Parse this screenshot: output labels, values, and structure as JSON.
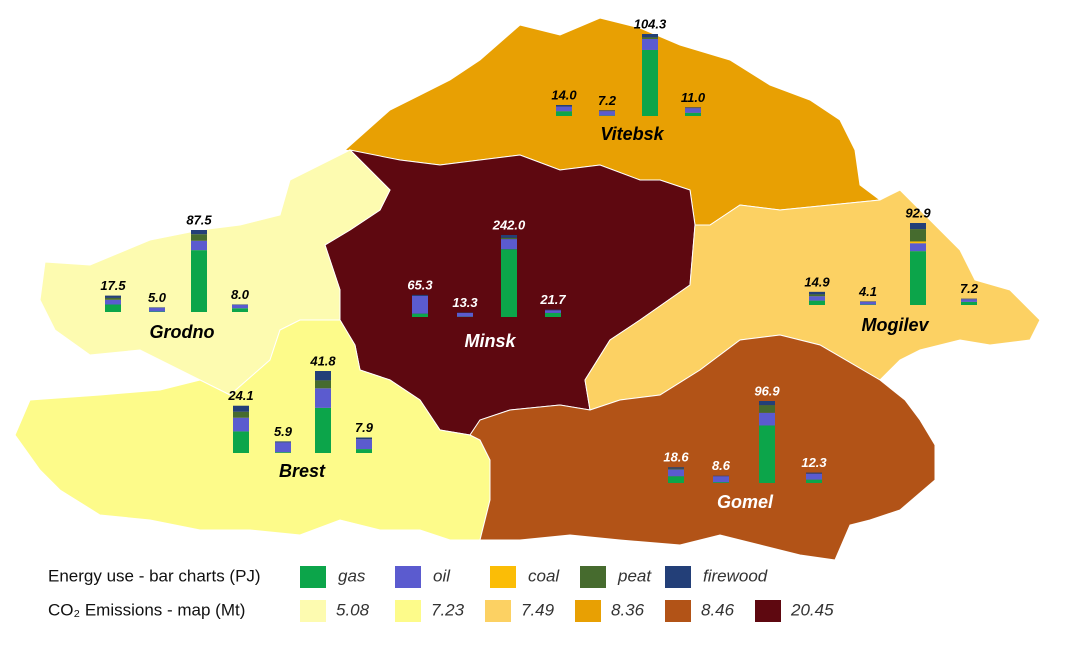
{
  "legend": {
    "energy_title": "Energy use - bar charts (PJ)",
    "fuels": [
      {
        "name": "gas",
        "color": "#0ca54a"
      },
      {
        "name": "oil",
        "color": "#5b5bcf"
      },
      {
        "name": "coal",
        "color": "#fbbd06"
      },
      {
        "name": "peat",
        "color": "#466b2e"
      },
      {
        "name": "firewood",
        "color": "#233f78"
      }
    ],
    "co2_title": "CO₂ Emissions - map (Mt)",
    "classes": [
      {
        "value": 5.08,
        "color": "#fdfbb0"
      },
      {
        "value": 7.23,
        "color": "#fdfb8a"
      },
      {
        "value": 7.49,
        "color": "#fcd163"
      },
      {
        "value": 8.36,
        "color": "#e8a003"
      },
      {
        "value": 8.46,
        "color": "#b25317"
      },
      {
        "value": 20.45,
        "color": "#5e0810"
      }
    ]
  },
  "regions": [
    {
      "name": "Vitebsk",
      "emissions": 8.36,
      "bars": [
        {
          "value": 14.0,
          "value_label": "14.0",
          "segments": [
            6,
            6,
            0,
            0,
            2
          ]
        },
        {
          "value": 7.2,
          "value_label": "7.2",
          "segments": [
            0.5,
            5.7,
            0,
            0,
            1
          ]
        },
        {
          "value": 104.3,
          "value_label": "104.3",
          "segments": [
            84,
            14,
            0,
            2,
            4.3
          ]
        },
        {
          "value": 11.0,
          "value_label": "11.0",
          "segments": [
            4,
            6,
            0,
            0,
            1
          ]
        }
      ]
    },
    {
      "name": "Minsk",
      "emissions": 20.45,
      "bars": [
        {
          "value": 65.3,
          "value_label": "65.3",
          "segments": [
            10,
            52,
            0,
            0,
            3.3
          ]
        },
        {
          "value": 13.3,
          "value_label": "13.3",
          "segments": [
            1,
            11,
            0,
            0,
            1.3
          ]
        },
        {
          "value": 242.0,
          "value_label": "242.0",
          "segments": [
            200,
            30,
            0,
            4,
            8
          ]
        },
        {
          "value": 21.7,
          "value_label": "21.7",
          "segments": [
            12,
            8,
            0,
            0,
            1.7
          ]
        }
      ]
    },
    {
      "name": "Grodno",
      "emissions": 5.08,
      "bars": [
        {
          "value": 17.5,
          "value_label": "17.5",
          "segments": [
            8,
            5,
            0,
            2,
            2.5
          ]
        },
        {
          "value": 5.0,
          "value_label": "5.0",
          "segments": [
            0.5,
            4,
            0,
            0,
            0.5
          ]
        },
        {
          "value": 87.5,
          "value_label": "87.5",
          "segments": [
            66,
            10,
            0,
            7,
            4.5
          ]
        },
        {
          "value": 8.0,
          "value_label": "8.0",
          "segments": [
            4,
            3.5,
            0,
            0,
            0.5
          ]
        }
      ]
    },
    {
      "name": "Brest",
      "emissions": 7.23,
      "bars": [
        {
          "value": 24.1,
          "value_label": "24.1",
          "segments": [
            11,
            7,
            0,
            3,
            3.1
          ]
        },
        {
          "value": 5.9,
          "value_label": "5.9",
          "segments": [
            0.4,
            5,
            0,
            0,
            0.5
          ]
        },
        {
          "value": 41.8,
          "value_label": "41.8",
          "segments": [
            23,
            10,
            0,
            4,
            4.8
          ]
        },
        {
          "value": 7.9,
          "value_label": "7.9",
          "segments": [
            2,
            5,
            0,
            0,
            0.9
          ]
        }
      ]
    },
    {
      "name": "Mogilev",
      "emissions": 7.49,
      "bars": [
        {
          "value": 14.9,
          "value_label": "14.9",
          "segments": [
            5,
            5,
            0,
            2,
            2.9
          ]
        },
        {
          "value": 4.1,
          "value_label": "4.1",
          "segments": [
            0.5,
            3,
            0,
            0,
            0.6
          ]
        },
        {
          "value": 92.9,
          "value_label": "92.9",
          "segments": [
            61,
            9,
            2,
            14,
            6.9
          ]
        },
        {
          "value": 7.2,
          "value_label": "7.2",
          "segments": [
            3.5,
            3,
            0,
            0,
            0.7
          ]
        }
      ]
    },
    {
      "name": "Gomel",
      "emissions": 8.46,
      "bars": [
        {
          "value": 18.6,
          "value_label": "18.6",
          "segments": [
            8,
            8,
            0,
            1,
            1.6
          ]
        },
        {
          "value": 8.6,
          "value_label": "8.6",
          "segments": [
            1,
            7,
            0,
            0,
            0.6
          ]
        },
        {
          "value": 96.9,
          "value_label": "96.9",
          "segments": [
            68,
            15,
            0,
            9,
            4.9
          ]
        },
        {
          "value": 12.3,
          "value_label": "12.3",
          "segments": [
            4,
            7,
            0,
            0,
            1.3
          ]
        }
      ]
    }
  ]
}
